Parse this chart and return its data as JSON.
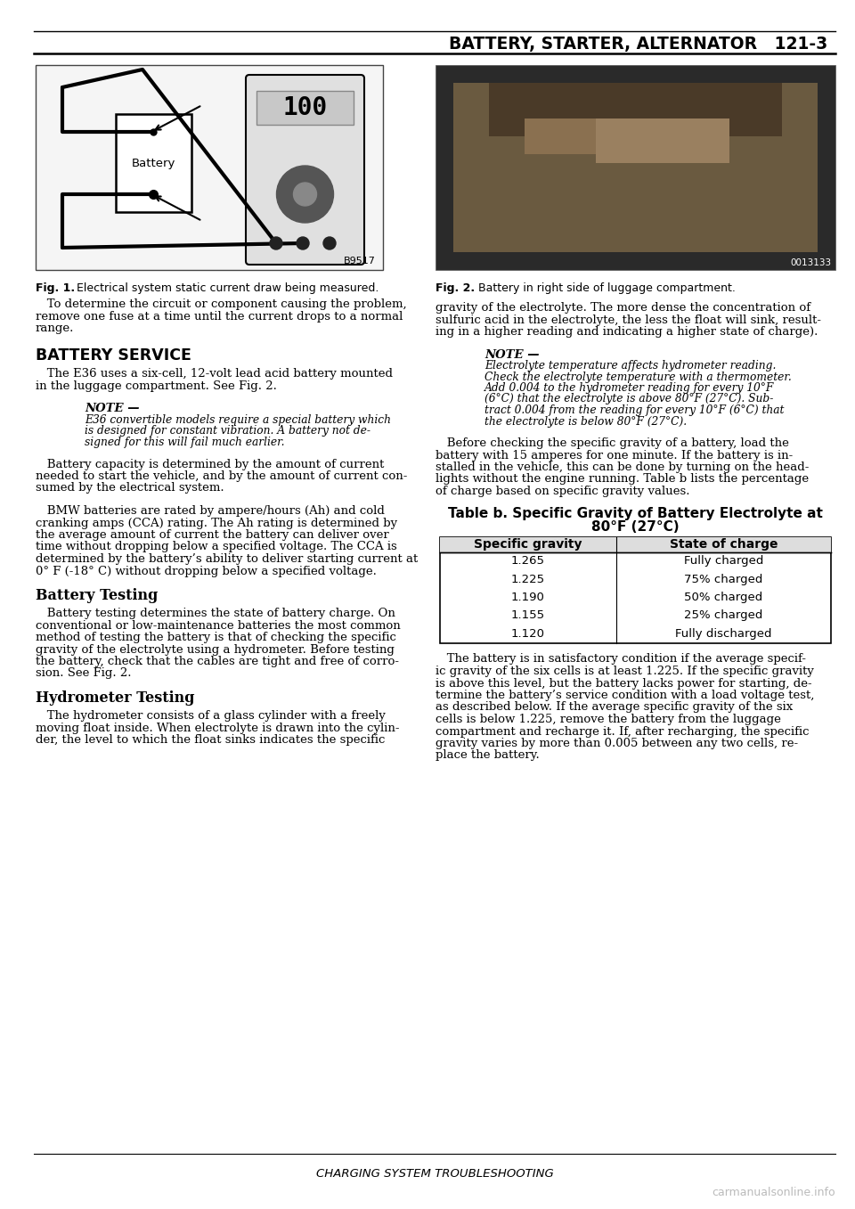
{
  "page_title": "BATTERY, STARTER, ALTERNATOR   121-3",
  "bg_color": "#ffffff",
  "fig1_caption_bold": "Fig. 1.",
  "fig1_caption_rest": "  Electrical system static current draw being measured.",
  "fig2_caption_bold": "Fig. 2.",
  "fig2_caption_rest": "  Battery in right side of luggage compartment.",
  "fig1_label": "B9517",
  "fig2_label": "0013133",
  "section_title_battery": "BATTERY SERVICE",
  "section_title_testing": "Battery Testing",
  "section_title_hydrometer": "Hydrometer Testing",
  "table_title_line1": "Table b. Specific Gravity of Battery Electrolyte at",
  "table_title_line2": "80°F (27°C)",
  "table_headers": [
    "Specific gravity",
    "State of charge"
  ],
  "table_col1": [
    "1.265",
    "1.225",
    "1.190",
    "1.155",
    "1.120"
  ],
  "table_col2": [
    "Fully charged",
    "75% charged",
    "50% charged",
    "25% charged",
    "Fully discharged"
  ],
  "note1_title": "NOTE —",
  "note1_lines": [
    "E36 convertible models require a special battery which",
    "is designed for constant vibration. A battery not de-",
    "signed for this will fail much earlier."
  ],
  "note2_title": "NOTE —",
  "note2_lines": [
    "Electrolyte temperature affects hydrometer reading.",
    "Check the electrolyte temperature with a thermometer.",
    "Add 0.004 to the hydrometer reading for every 10°F",
    "(6°C) that the electrolyte is above 80°F (27°C). Sub-",
    "tract 0.004 from the reading for every 10°F (6°C) that",
    "the electrolyte is below 80°F (27°C)."
  ],
  "para_determine_lines": [
    "   To determine the circuit or component causing the problem,",
    "remove one fuse at a time until the current drops to a normal",
    "range."
  ],
  "para_battery_service_lines": [
    "   The E36 uses a six-cell, 12-volt lead acid battery mounted",
    "in the luggage compartment. See Fig. 2."
  ],
  "para_battery_capacity_lines": [
    "   Battery capacity is determined by the amount of current",
    "needed to start the vehicle, and by the amount of current con-",
    "sumed by the electrical system."
  ],
  "para_bmw_batteries_lines": [
    "   BMW batteries are rated by ampere/hours (Ah) and cold",
    "cranking amps (CCA) rating. The Ah rating is determined by",
    "the average amount of current the battery can deliver over",
    "time without dropping below a specified voltage. The CCA is",
    "determined by the battery’s ability to deliver starting current at",
    "0° F (-18° C) without dropping below a specified voltage."
  ],
  "para_battery_testing_lines": [
    "   Battery testing determines the state of battery charge. On",
    "conventional or low-maintenance batteries the most common",
    "method of testing the battery is that of checking the specific",
    "gravity of the electrolyte using a hydrometer. Before testing",
    "the battery, check that the cables are tight and free of corro-",
    "sion. See Fig. 2."
  ],
  "para_hydrometer_lines": [
    "   The hydrometer consists of a glass cylinder with a freely",
    "moving float inside. When electrolyte is drawn into the cylin-",
    "der, the level to which the float sinks indicates the specific"
  ],
  "para_gravity_lines": [
    "gravity of the electrolyte. The more dense the concentration of",
    "sulfuric acid in the electrolyte, the less the float will sink, result-",
    "ing in a higher reading and indicating a higher state of charge)."
  ],
  "para_before_checking_lines": [
    "   Before checking the specific gravity of a battery, load the",
    "battery with 15 amperes for one minute. If the battery is in-",
    "stalled in the vehicle, this can be done by turning on the head-",
    "lights without the engine running. Table b lists the percentage",
    "of charge based on specific gravity values."
  ],
  "para_satisfactory_lines": [
    "   The battery is in satisfactory condition if the average specif-",
    "ic gravity of the six cells is at least 1.225. If the specific gravity",
    "is above this level, but the battery lacks power for starting, de-",
    "termine the battery’s service condition with a load voltage test,",
    "as described below. If the average specific gravity of the six",
    "cells is below 1.225, remove the battery from the luggage",
    "compartment and recharge it. If, after recharging, the specific",
    "gravity varies by more than 0.005 between any two cells, re-",
    "place the battery."
  ],
  "footer_text": "CHARGING SYSTEM TROUBLESHOOTING",
  "watermark": "carmanualsonline.info"
}
